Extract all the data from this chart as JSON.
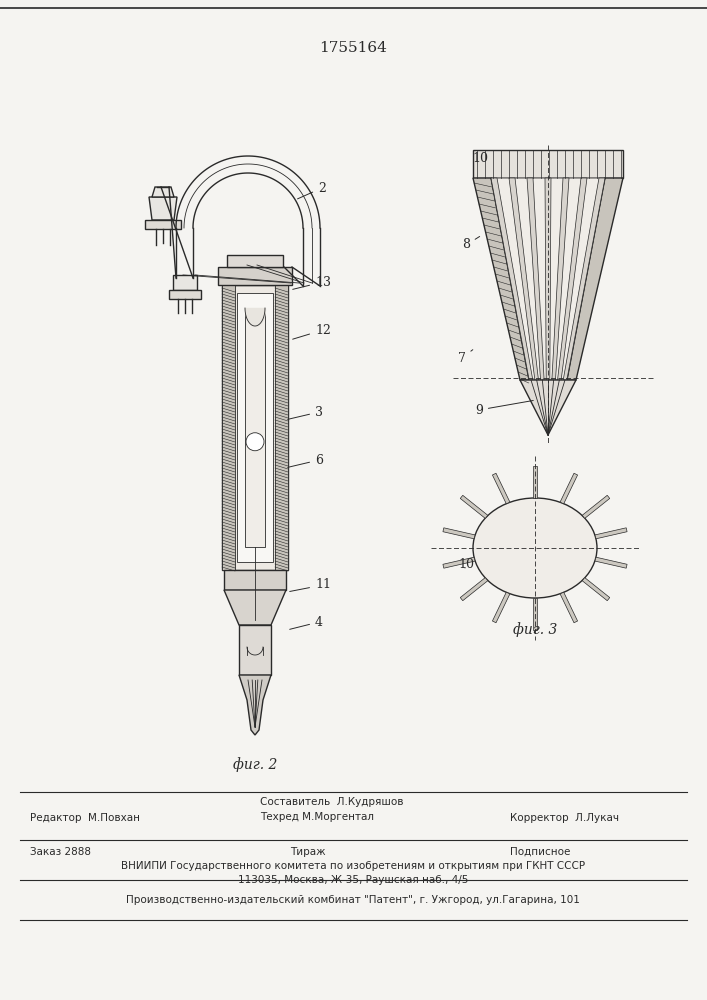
{
  "patent_number": "1755164",
  "fig2_label": "фиг. 2",
  "fig3_label": "фиг. 3",
  "bg_color": "#f5f4f1",
  "line_color": "#2a2a2a",
  "editor_line": "Редактор  М.Повхан",
  "composer_line1": "Составитель  Л.Кудряшов",
  "composer_line2": "Техред М.Моргентал",
  "corrector_line": "Корректор  Л.Лукач",
  "order_line": "Заказ 2888",
  "tirazh_line": "Тираж",
  "podpisnoe_line": "Подписное",
  "vniiipi_line1": "ВНИИПИ Государственного комитета по изобретениям и открытиям при ГКНТ СССР",
  "vniiipi_line2": "113035, Москва, Ж-35, Раушская наб., 4/5",
  "publisher_line": "Производственно-издательский комбинат \"Патент\", г. Ужгород, ул.Гагарина, 101"
}
